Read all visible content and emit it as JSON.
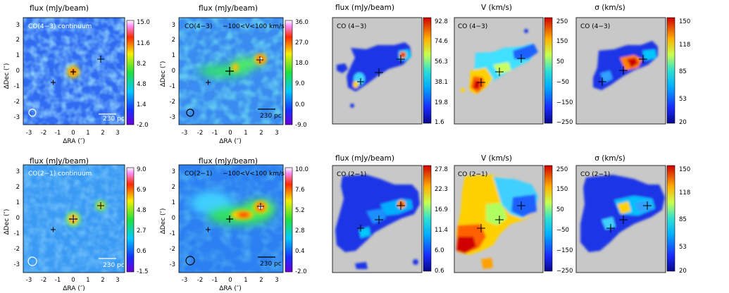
{
  "chart_data": [
    {
      "type": "heatmap",
      "title": "flux (mJy/beam)",
      "label": "CO(4−3) continuum",
      "colorbar_ticks": [
        "15.0",
        "11.6",
        "8.2",
        "4.8",
        "1.4",
        "-2.0"
      ],
      "x_ticks": [
        "-3",
        "-2",
        "-1",
        "0",
        "1",
        "2",
        "3"
      ],
      "y_ticks": [
        "3",
        "2",
        "1",
        "0",
        "-1",
        "-2",
        "-3"
      ],
      "xlabel": "ΔRA (″)",
      "ylabel": "ΔDec (″)",
      "scalebar": "230 pc",
      "xlim": [
        -3.5,
        3.5
      ],
      "ylim": [
        -3.5,
        3.5
      ]
    },
    {
      "type": "heatmap",
      "title": "flux (mJy/beam)",
      "label": "CO(4−3)",
      "velocity_range": "−100<V<100 km/s",
      "colorbar_ticks": [
        "36.0",
        "27.0",
        "18.0",
        "9.0",
        "0.0",
        "-9.0"
      ],
      "x_ticks": [
        "-3",
        "-2",
        "-1",
        "0",
        "1",
        "2",
        "3"
      ],
      "y_ticks": [
        "3",
        "2",
        "1",
        "0",
        "-1",
        "-2",
        "-3"
      ],
      "xlabel": "ΔRA (″)",
      "ylabel": "ΔDec (″)",
      "scalebar": "230 pc",
      "xlim": [
        -3.5,
        3.5
      ],
      "ylim": [
        -3.5,
        3.5
      ]
    },
    {
      "type": "heatmap",
      "title": "flux (mJy/beam)",
      "label": "CO (4−3)",
      "colorbar_ticks": [
        "92.8",
        "74.6",
        "56.3",
        "38.1",
        "19.8",
        "1.6"
      ]
    },
    {
      "type": "heatmap",
      "title": "V (km/s)",
      "label": "CO (4−3)",
      "colorbar_ticks": [
        "250",
        "150",
        "50",
        "−50",
        "−150",
        "−250"
      ]
    },
    {
      "type": "heatmap",
      "title": "σ (km/s)",
      "label": "CO (4−3)",
      "colorbar_ticks": [
        "150",
        "118",
        "85",
        "53",
        "20"
      ]
    },
    {
      "type": "heatmap",
      "title": "flux (mJy/beam)",
      "label": "CO(2−1) continuum",
      "colorbar_ticks": [
        "9.0",
        "6.9",
        "4.8",
        "2.7",
        "0.6",
        "-1.5"
      ],
      "x_ticks": [
        "-3",
        "-2",
        "-1",
        "0",
        "1",
        "2",
        "3"
      ],
      "y_ticks": [
        "3",
        "2",
        "1",
        "0",
        "-1",
        "-2",
        "-3"
      ],
      "xlabel": "ΔRA (″)",
      "ylabel": "ΔDec (″)",
      "scalebar": "230 pc",
      "xlim": [
        -3.5,
        3.5
      ],
      "ylim": [
        -3.5,
        3.5
      ]
    },
    {
      "type": "heatmap",
      "title": "flux (mJy/beam)",
      "label": "CO(2−1)",
      "velocity_range": "−100<V<100 km/s",
      "colorbar_ticks": [
        "10.0",
        "7.6",
        "5.2",
        "2.8",
        "0.4",
        "-2.0"
      ],
      "x_ticks": [
        "-3",
        "-2",
        "-1",
        "0",
        "1",
        "2",
        "3"
      ],
      "y_ticks": [
        "3",
        "2",
        "1",
        "0",
        "-1",
        "-2",
        "-3"
      ],
      "xlabel": "ΔRA (″)",
      "ylabel": "ΔDec (″)",
      "scalebar": "230 pc",
      "xlim": [
        -3.5,
        3.5
      ],
      "ylim": [
        -3.5,
        3.5
      ]
    },
    {
      "type": "heatmap",
      "title": "flux (mJy/beam)",
      "label": "CO (2−1)",
      "colorbar_ticks": [
        "27.8",
        "22.3",
        "16.9",
        "11.4",
        "6.0",
        "0.6"
      ]
    },
    {
      "type": "heatmap",
      "title": "V (km/s)",
      "label": "CO (2−1)",
      "colorbar_ticks": [
        "250",
        "150",
        "50",
        "−50",
        "−150",
        "−250"
      ]
    },
    {
      "type": "heatmap",
      "title": "σ (km/s)",
      "label": "CO (2−1)",
      "colorbar_ticks": [
        "150",
        "118",
        "85",
        "53",
        "20"
      ]
    }
  ]
}
